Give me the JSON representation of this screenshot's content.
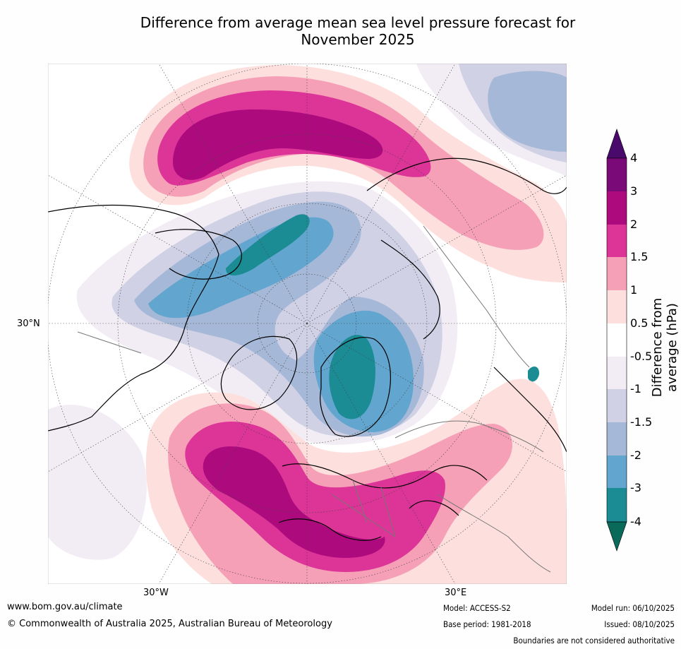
{
  "title": {
    "line1": "Difference from average mean sea level pressure forecast for",
    "line2": "November 2025"
  },
  "map": {
    "projection": "north polar stereographic",
    "lon_labels": [
      "30°W",
      "30°E"
    ],
    "lat_labels": [
      "30°N"
    ]
  },
  "colorbar": {
    "label": "Difference from average (hPa)",
    "ticks": [
      "4",
      "3",
      "2",
      "1.5",
      "1",
      "0.5",
      "-0.5",
      "-1",
      "-1.5",
      "-2",
      "-3",
      "-4"
    ],
    "colors": {
      "above_4": "#4a0a6b",
      "3_to_4": "#7a0a78",
      "2_to_3": "#ad0a7e",
      "1.5_to_2": "#dc3497",
      "1_to_1.5": "#f6a0b8",
      "0.5_to_1": "#fde0de",
      "neutral": "#ffffff",
      "-1_to_-0.5": "#f2edf4",
      "-1.5_to_-1": "#d1d1e5",
      "-2_to_-1.5": "#a5b8d7",
      "-3_to_-2": "#62a6cf",
      "-4_to_-3": "#1b8c94",
      "below_-4": "#0a6a5a"
    }
  },
  "footer": {
    "website": "www.bom.gov.au/climate",
    "copyright": "© Commonwealth of Australia 2025, Australian Bureau of Meteorology",
    "model": "Model: ACCESS-S2",
    "base_period": "Base period: 1981-2018",
    "model_run": "Model run: 06/10/2025",
    "issued": "Issued: 08/10/2025",
    "disclaimer": "Boundaries are not considered authoritative"
  }
}
